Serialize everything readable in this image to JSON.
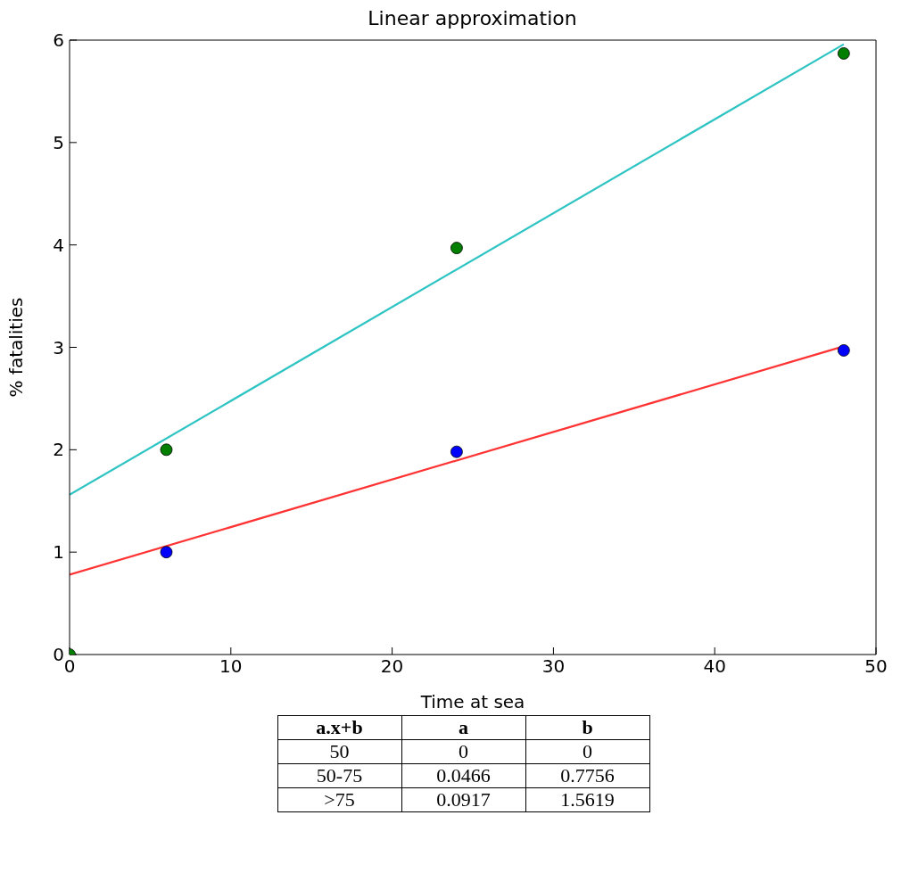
{
  "chart_data": {
    "type": "scatter",
    "title": "Linear approximation",
    "xlabel": "Time at sea",
    "ylabel": "% fatalities",
    "xlim": [
      0,
      50
    ],
    "xticks": [
      0,
      10,
      20,
      30,
      40,
      50
    ],
    "ylim": [
      0,
      6
    ],
    "yticks": [
      0,
      1,
      2,
      3,
      4,
      5,
      6
    ],
    "grid": false,
    "legend": false,
    "series": [
      {
        "type": "line",
        "color": "#2ec4c4",
        "x": [
          0,
          48
        ],
        "values": [
          1.56,
          5.96
        ],
        "marker": "none"
      },
      {
        "type": "line",
        "color": "#ff3333",
        "x": [
          0,
          48
        ],
        "values": [
          0.78,
          3.01
        ],
        "marker": "none"
      },
      {
        "type": "scatter",
        "color": "#007f00",
        "x": [
          0,
          6,
          24,
          48
        ],
        "values": [
          0,
          2,
          3.97,
          5.87
        ],
        "marker": "circle"
      },
      {
        "type": "scatter",
        "color": "#0000ff",
        "x": [
          6,
          24,
          48
        ],
        "values": [
          1,
          1.98,
          2.97
        ],
        "marker": "circle"
      }
    ],
    "annotations": [
      "a.x+b",
      "a",
      "b",
      "50",
      "0",
      "0",
      "50-75",
      "0.0466",
      "0.7756",
      ">75",
      "0.0917",
      "1.5619"
    ]
  }
}
